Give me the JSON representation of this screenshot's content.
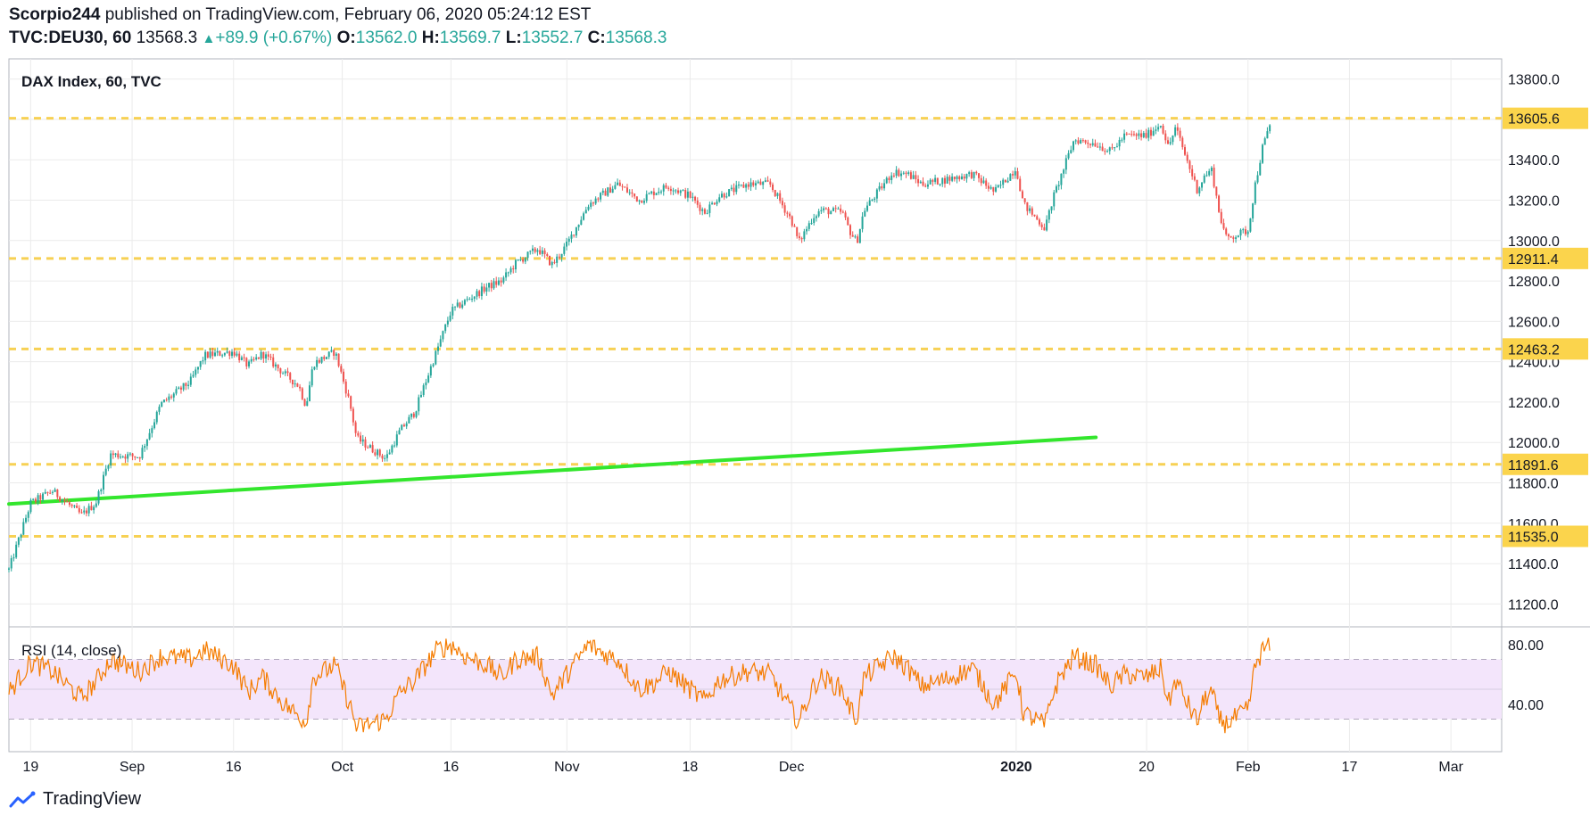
{
  "header": {
    "author": "Scorpio244",
    "published": "published on TradingView.com, February 06, 2020 05:24:12 EST",
    "symbol": "TVC:DEU30, 60",
    "last": "13568.3",
    "change": "+89.9 (+0.67%)",
    "o_label": "O:",
    "o_value": "13562.0",
    "h_label": "H:",
    "h_value": "13569.7",
    "l_label": "L:",
    "l_value": "13552.7",
    "c_label": "C:",
    "c_value": "13568.3"
  },
  "footer": {
    "brand": "TradingView"
  },
  "colors": {
    "up": "#26a69a",
    "down": "#ef5350",
    "level": "#f7d154",
    "level_label_bg": "#fbd44c",
    "trend": "#33e62d",
    "rsi_line": "#f57c00",
    "rsi_band": "#f3e5fb",
    "grid": "#ebebeb"
  },
  "chart_data": {
    "type": "candlestick",
    "title": "DAX Index, 60, TVC",
    "ylim": [
      11100,
      13900
    ],
    "yticks": [
      11200,
      11400,
      11600,
      11800,
      12000,
      12200,
      12400,
      12600,
      12800,
      13000,
      13200,
      13400,
      13600,
      13800
    ],
    "ytick_labels": [
      "11200.0",
      "11400.0",
      "11600.0",
      "11800.0",
      "12000.0",
      "12200.0",
      "12400.0",
      "12600.0",
      "12800.0",
      "13000.0",
      "13200.0",
      "13400.0",
      "13600.0",
      "13800.0"
    ],
    "xticks": [
      {
        "label": "19",
        "date": "2019-08-19"
      },
      {
        "label": "Sep",
        "date": "2019-09-02"
      },
      {
        "label": "16",
        "date": "2019-09-16"
      },
      {
        "label": "Oct",
        "date": "2019-10-01"
      },
      {
        "label": "16",
        "date": "2019-10-16"
      },
      {
        "label": "Nov",
        "date": "2019-11-01"
      },
      {
        "label": "18",
        "date": "2019-11-18"
      },
      {
        "label": "Dec",
        "date": "2019-12-02"
      },
      {
        "label": "2020",
        "date": "2020-01-02",
        "bold": true
      },
      {
        "label": "20",
        "date": "2020-01-20"
      },
      {
        "label": "Feb",
        "date": "2020-02-03"
      },
      {
        "label": "17",
        "date": "2020-02-17"
      },
      {
        "label": "Mar",
        "date": "2020-03-02"
      }
    ],
    "levels": [
      {
        "value": 13605.6,
        "label": "13605.6"
      },
      {
        "value": 12911.4,
        "label": "12911.4"
      },
      {
        "value": 12463.2,
        "label": "12463.2"
      },
      {
        "value": 11891.6,
        "label": "11891.6"
      },
      {
        "value": 11535.0,
        "label": "11535.0"
      }
    ],
    "trendline": {
      "start": {
        "date": "2019-08-16",
        "value": 11695
      },
      "end": {
        "date": "2020-01-13",
        "value": 12025
      }
    },
    "price_path": [
      [
        "2019-08-16",
        11370
      ],
      [
        "2019-08-19",
        11700
      ],
      [
        "2019-08-22",
        11760
      ],
      [
        "2019-08-26",
        11640
      ],
      [
        "2019-08-28",
        11700
      ],
      [
        "2019-08-30",
        11940
      ],
      [
        "2019-09-03",
        11930
      ],
      [
        "2019-09-06",
        12190
      ],
      [
        "2019-09-10",
        12300
      ],
      [
        "2019-09-12",
        12430
      ],
      [
        "2019-09-16",
        12450
      ],
      [
        "2019-09-18",
        12380
      ],
      [
        "2019-09-20",
        12440
      ],
      [
        "2019-09-23",
        12340
      ],
      [
        "2019-09-25",
        12280
      ],
      [
        "2019-09-26",
        12180
      ],
      [
        "2019-09-27",
        12390
      ],
      [
        "2019-09-30",
        12450
      ],
      [
        "2019-10-02",
        12200
      ],
      [
        "2019-10-03",
        12020
      ],
      [
        "2019-10-07",
        11920
      ],
      [
        "2019-10-09",
        12060
      ],
      [
        "2019-10-11",
        12150
      ],
      [
        "2019-10-14",
        12450
      ],
      [
        "2019-10-16",
        12650
      ],
      [
        "2019-10-18",
        12700
      ],
      [
        "2019-10-21",
        12770
      ],
      [
        "2019-10-23",
        12800
      ],
      [
        "2019-10-25",
        12890
      ],
      [
        "2019-10-28",
        12960
      ],
      [
        "2019-10-30",
        12880
      ],
      [
        "2019-11-01",
        12980
      ],
      [
        "2019-11-04",
        13180
      ],
      [
        "2019-11-06",
        13230
      ],
      [
        "2019-11-08",
        13280
      ],
      [
        "2019-11-11",
        13200
      ],
      [
        "2019-11-13",
        13240
      ],
      [
        "2019-11-15",
        13270
      ],
      [
        "2019-11-18",
        13220
      ],
      [
        "2019-11-20",
        13140
      ],
      [
        "2019-11-22",
        13220
      ],
      [
        "2019-11-26",
        13280
      ],
      [
        "2019-11-29",
        13280
      ],
      [
        "2019-12-02",
        13100
      ],
      [
        "2019-12-03",
        12990
      ],
      [
        "2019-12-05",
        13120
      ],
      [
        "2019-12-06",
        13150
      ],
      [
        "2019-12-09",
        13140
      ],
      [
        "2019-12-10",
        13050
      ],
      [
        "2019-12-11",
        12990
      ],
      [
        "2019-12-12",
        13150
      ],
      [
        "2019-12-16",
        13340
      ],
      [
        "2019-12-18",
        13330
      ],
      [
        "2019-12-20",
        13280
      ],
      [
        "2019-12-23",
        13300
      ],
      [
        "2019-12-27",
        13330
      ],
      [
        "2019-12-30",
        13240
      ],
      [
        "2020-01-02",
        13360
      ],
      [
        "2020-01-03",
        13180
      ],
      [
        "2020-01-06",
        13060
      ],
      [
        "2020-01-07",
        13200
      ],
      [
        "2020-01-08",
        13300
      ],
      [
        "2020-01-10",
        13500
      ],
      [
        "2020-01-13",
        13480
      ],
      [
        "2020-01-15",
        13440
      ],
      [
        "2020-01-17",
        13520
      ],
      [
        "2020-01-20",
        13520
      ],
      [
        "2020-01-22",
        13580
      ],
      [
        "2020-01-23",
        13460
      ],
      [
        "2020-01-24",
        13560
      ],
      [
        "2020-01-27",
        13250
      ],
      [
        "2020-01-28",
        13320
      ],
      [
        "2020-01-29",
        13350
      ],
      [
        "2020-01-30",
        13140
      ],
      [
        "2020-01-31",
        13010
      ],
      [
        "2020-02-03",
        13050
      ],
      [
        "2020-02-04",
        13280
      ],
      [
        "2020-02-05",
        13460
      ],
      [
        "2020-02-06",
        13568
      ]
    ],
    "rsi": {
      "label": "RSI (14, close)",
      "ylim": [
        10,
        90
      ],
      "yticks": [
        40,
        80
      ],
      "ytick_labels": [
        "40.00",
        "80.00"
      ],
      "band": [
        30,
        70
      ],
      "mid": 50,
      "path": [
        [
          "2019-08-16",
          48
        ],
        [
          "2019-08-19",
          68
        ],
        [
          "2019-08-22",
          62
        ],
        [
          "2019-08-26",
          44
        ],
        [
          "2019-08-28",
          55
        ],
        [
          "2019-08-30",
          70
        ],
        [
          "2019-09-03",
          62
        ],
        [
          "2019-09-06",
          72
        ],
        [
          "2019-09-10",
          70
        ],
        [
          "2019-09-12",
          76
        ],
        [
          "2019-09-16",
          66
        ],
        [
          "2019-09-18",
          48
        ],
        [
          "2019-09-20",
          58
        ],
        [
          "2019-09-23",
          40
        ],
        [
          "2019-09-25",
          32
        ],
        [
          "2019-09-26",
          28
        ],
        [
          "2019-09-27",
          58
        ],
        [
          "2019-09-30",
          66
        ],
        [
          "2019-10-02",
          40
        ],
        [
          "2019-10-03",
          24
        ],
        [
          "2019-10-07",
          30
        ],
        [
          "2019-10-09",
          48
        ],
        [
          "2019-10-11",
          56
        ],
        [
          "2019-10-14",
          76
        ],
        [
          "2019-10-16",
          80
        ],
        [
          "2019-10-18",
          72
        ],
        [
          "2019-10-21",
          66
        ],
        [
          "2019-10-23",
          58
        ],
        [
          "2019-10-25",
          70
        ],
        [
          "2019-10-28",
          72
        ],
        [
          "2019-10-30",
          46
        ],
        [
          "2019-11-01",
          60
        ],
        [
          "2019-11-04",
          80
        ],
        [
          "2019-11-06",
          74
        ],
        [
          "2019-11-08",
          70
        ],
        [
          "2019-11-11",
          50
        ],
        [
          "2019-11-13",
          54
        ],
        [
          "2019-11-15",
          62
        ],
        [
          "2019-11-18",
          50
        ],
        [
          "2019-11-20",
          42
        ],
        [
          "2019-11-22",
          56
        ],
        [
          "2019-11-26",
          62
        ],
        [
          "2019-11-29",
          60
        ],
        [
          "2019-12-02",
          36
        ],
        [
          "2019-12-03",
          28
        ],
        [
          "2019-12-05",
          52
        ],
        [
          "2019-12-06",
          58
        ],
        [
          "2019-12-09",
          50
        ],
        [
          "2019-12-10",
          38
        ],
        [
          "2019-12-11",
          30
        ],
        [
          "2019-12-12",
          58
        ],
        [
          "2019-12-16",
          72
        ],
        [
          "2019-12-18",
          64
        ],
        [
          "2019-12-20",
          52
        ],
        [
          "2019-12-23",
          56
        ],
        [
          "2019-12-27",
          64
        ],
        [
          "2019-12-30",
          40
        ],
        [
          "2020-01-02",
          62
        ],
        [
          "2020-01-03",
          34
        ],
        [
          "2020-01-06",
          26
        ],
        [
          "2020-01-07",
          46
        ],
        [
          "2020-01-08",
          58
        ],
        [
          "2020-01-10",
          72
        ],
        [
          "2020-01-13",
          66
        ],
        [
          "2020-01-15",
          52
        ],
        [
          "2020-01-17",
          60
        ],
        [
          "2020-01-20",
          58
        ],
        [
          "2020-01-22",
          64
        ],
        [
          "2020-01-23",
          40
        ],
        [
          "2020-01-24",
          56
        ],
        [
          "2020-01-27",
          28
        ],
        [
          "2020-01-28",
          44
        ],
        [
          "2020-01-29",
          48
        ],
        [
          "2020-01-30",
          30
        ],
        [
          "2020-01-31",
          27
        ],
        [
          "2020-02-03",
          36
        ],
        [
          "2020-02-04",
          66
        ],
        [
          "2020-02-05",
          76
        ],
        [
          "2020-02-06",
          79
        ]
      ]
    }
  }
}
